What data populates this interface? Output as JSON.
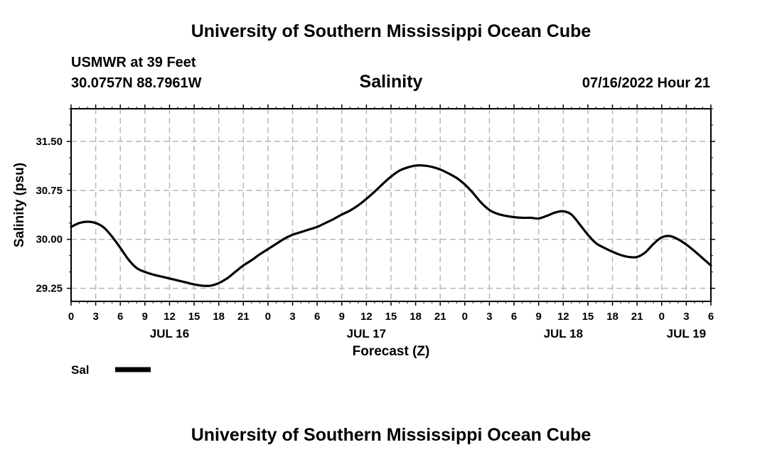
{
  "header": {
    "title": "University of Southern Mississippi Ocean Cube",
    "station": "USMWR at 39 Feet",
    "coordinates": "30.0757N  88.7961W",
    "valid_time": "07/16/2022 Hour 21"
  },
  "footer": {
    "title": "University of Southern Mississippi Ocean Cube"
  },
  "chart_data": {
    "type": "line",
    "title": "Salinity",
    "xlabel": "Forecast (Z)",
    "ylabel": "Salinity (psu)",
    "xlim": [
      0,
      78
    ],
    "ylim": [
      29.05,
      32.0
    ],
    "yticks": [
      29.25,
      30.0,
      30.75,
      31.5
    ],
    "ytick_labels": [
      "29.25",
      "30.00",
      "30.75",
      "31.50"
    ],
    "x_tick_step": 3,
    "x_tick_labels": [
      "0",
      "3",
      "6",
      "9",
      "12",
      "15",
      "18",
      "21",
      "0",
      "3",
      "6",
      "9",
      "12",
      "15",
      "18",
      "21",
      "0",
      "3",
      "6",
      "9",
      "12",
      "15",
      "18",
      "21",
      "0",
      "3",
      "6"
    ],
    "day_labels": [
      {
        "label": "JUL 16",
        "x": 12
      },
      {
        "label": "JUL 17",
        "x": 36
      },
      {
        "label": "JUL 18",
        "x": 60
      },
      {
        "label": "JUL 19",
        "x": 75
      }
    ],
    "grid": true,
    "legend": {
      "position": "bottom-left",
      "entries": [
        {
          "name": "Sal",
          "color": "#000000"
        }
      ]
    },
    "series": [
      {
        "name": "Sal",
        "color": "#000000",
        "x": [
          0,
          1,
          2,
          3,
          4,
          5,
          6,
          7,
          8,
          9,
          10,
          11,
          12,
          13,
          14,
          15,
          16,
          17,
          18,
          19,
          20,
          21,
          22,
          23,
          24,
          25,
          26,
          27,
          28,
          29,
          30,
          31,
          32,
          33,
          34,
          35,
          36,
          37,
          38,
          39,
          40,
          41,
          42,
          43,
          44,
          45,
          46,
          47,
          48,
          49,
          50,
          51,
          52,
          53,
          54,
          55,
          56,
          57,
          58,
          59,
          60,
          61,
          62,
          63,
          64,
          65,
          66,
          67,
          68,
          69,
          70,
          71,
          72,
          73,
          74,
          75,
          76,
          77,
          78
        ],
        "values": [
          30.19,
          30.25,
          30.27,
          30.25,
          30.18,
          30.04,
          29.87,
          29.69,
          29.56,
          29.5,
          29.46,
          29.43,
          29.4,
          29.37,
          29.34,
          29.31,
          29.29,
          29.29,
          29.33,
          29.4,
          29.5,
          29.6,
          29.68,
          29.77,
          29.85,
          29.93,
          30.01,
          30.07,
          30.11,
          30.15,
          30.19,
          30.25,
          30.31,
          30.38,
          30.44,
          30.52,
          30.62,
          30.73,
          30.85,
          30.96,
          31.05,
          31.1,
          31.13,
          31.13,
          31.11,
          31.07,
          31.01,
          30.94,
          30.84,
          30.71,
          30.56,
          30.45,
          30.39,
          30.36,
          30.34,
          30.33,
          30.33,
          30.32,
          30.36,
          30.41,
          30.43,
          30.38,
          30.23,
          30.07,
          29.94,
          29.87,
          29.81,
          29.76,
          29.73,
          29.73,
          29.8,
          29.93,
          30.03,
          30.05,
          30.0,
          29.92,
          29.82,
          29.71,
          29.6
        ]
      }
    ]
  }
}
